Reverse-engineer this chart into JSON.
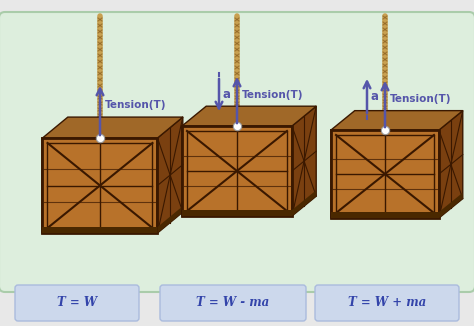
{
  "bg_color": "#ddeedd",
  "bg_outer": "#e8e8e8",
  "rope_color_main": "#c8a050",
  "rope_color_dark": "#8B6020",
  "crate_front": "#9B5A1A",
  "crate_wood": "#B8722A",
  "crate_light": "#C8883A",
  "crate_top": "#A06828",
  "crate_right": "#7A4010",
  "crate_dark": "#4A2800",
  "crate_frame": "#3A1800",
  "arrow_color": "#5555aa",
  "formula_bg": "#ccd8ec",
  "formula_border": "#aabbdd",
  "formula_text": "#3344aa",
  "formulas": [
    "T = W",
    "T = W - ma",
    "T = W + ma"
  ],
  "tension_label": "Tension(T)",
  "accel_label": "a"
}
